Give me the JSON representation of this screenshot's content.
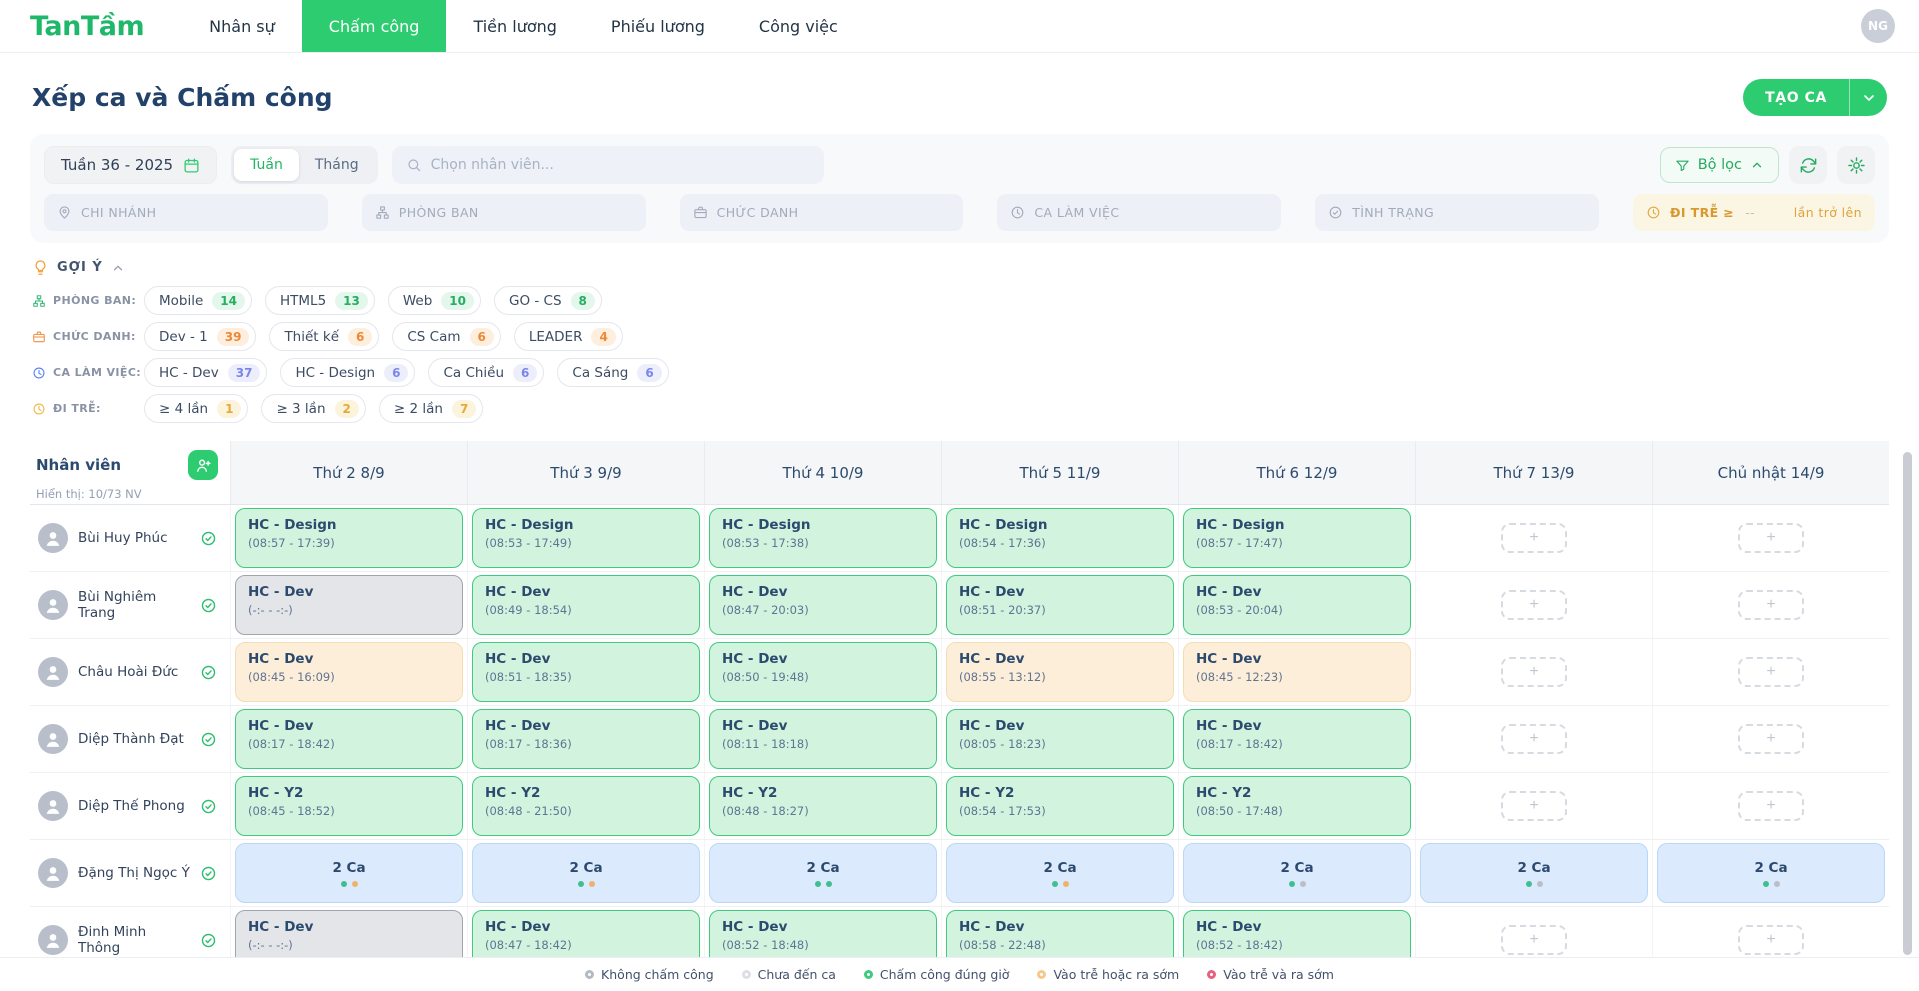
{
  "nav": {
    "logo": "TanTầm",
    "items": [
      {
        "label": "Nhân sự",
        "active": false
      },
      {
        "label": "Chấm công",
        "active": true
      },
      {
        "label": "Tiền lương",
        "active": false
      },
      {
        "label": "Phiếu lương",
        "active": false
      },
      {
        "label": "Công việc",
        "active": false
      }
    ],
    "avatar": "NG"
  },
  "header": {
    "title": "Xếp ca và Chấm công",
    "create_button": "TẠO CA"
  },
  "toolbar": {
    "week": "Tuần 36 - 2025",
    "view_week": "Tuần",
    "view_month": "Tháng",
    "search_placeholder": "Chọn nhân viên...",
    "filter_button": "Bộ lọc"
  },
  "filters": [
    {
      "label": "CHI NHÁNH",
      "icon": "location-pin-icon"
    },
    {
      "label": "PHÒNG BAN",
      "icon": "sitemap-icon"
    },
    {
      "label": "CHỨC DANH",
      "icon": "briefcase-icon"
    },
    {
      "label": "CA LÀM VIỆC",
      "icon": "clock-icon"
    },
    {
      "label": "TÌNH TRẠNG",
      "icon": "check-circle-icon"
    }
  ],
  "late_filter": {
    "label": "ĐI TRỄ ≥",
    "value": "--",
    "suffix": "lần trở lên",
    "icon": "clock-icon"
  },
  "suggestions": {
    "title": "GỢI Ý",
    "groups": [
      {
        "label": "PHÒNG BAN:",
        "icon": "sitemap-icon",
        "icon_color": "#35b775",
        "count_color": "#27ae60",
        "count_bg": "#e4f7ec",
        "chips": [
          {
            "label": "Mobile",
            "count": "14"
          },
          {
            "label": "HTML5",
            "count": "13"
          },
          {
            "label": "Web",
            "count": "10"
          },
          {
            "label": "GO - CS",
            "count": "8"
          }
        ]
      },
      {
        "label": "CHỨC DANH:",
        "icon": "briefcase-icon",
        "icon_color": "#ee8f3f",
        "count_color": "#ed8936",
        "count_bg": "#fdeede",
        "chips": [
          {
            "label": "Dev - 1",
            "count": "39"
          },
          {
            "label": "Thiết kế",
            "count": "6"
          },
          {
            "label": "CS Cam",
            "count": "6"
          },
          {
            "label": "LEADER",
            "count": "4"
          }
        ]
      },
      {
        "label": "CA LÀM VIỆC:",
        "icon": "clock-icon",
        "icon_color": "#4f7df2",
        "count_color": "#7b87e8",
        "count_bg": "#edeefc",
        "chips": [
          {
            "label": "HC - Dev",
            "count": "37"
          },
          {
            "label": "HC - Design",
            "count": "6"
          },
          {
            "label": "Ca Chiều",
            "count": "6"
          },
          {
            "label": "Ca Sáng",
            "count": "6"
          }
        ]
      },
      {
        "label": "ĐI TRỄ:",
        "icon": "clock-icon",
        "icon_color": "#eeb63f",
        "count_color": "#e6a93c",
        "count_bg": "#fcf3dc",
        "chips": [
          {
            "label": "≥ 4 lần",
            "count": "1"
          },
          {
            "label": "≥ 3 lần",
            "count": "2"
          },
          {
            "label": "≥ 2 lần",
            "count": "7"
          }
        ]
      }
    ]
  },
  "table": {
    "employee_header": "Nhân viên",
    "showing": "Hiển thị: 10/73 NV",
    "add_symbol": "+",
    "days": [
      "Thứ 2 8/9",
      "Thứ 3 9/9",
      "Thứ 4 10/9",
      "Thứ 5 11/9",
      "Thứ 6 12/9",
      "Thứ 7 13/9",
      "Chủ nhật 14/9"
    ],
    "rows": [
      {
        "name": "Bùi Huy Phúc",
        "cells": [
          {
            "t": "shift",
            "s": "ontime",
            "title": "HC - Design",
            "time": "(08:57 - 17:39)"
          },
          {
            "t": "shift",
            "s": "ontime",
            "title": "HC - Design",
            "time": "(08:53 - 17:49)"
          },
          {
            "t": "shift",
            "s": "ontime",
            "title": "HC - Design",
            "time": "(08:53 - 17:38)"
          },
          {
            "t": "shift",
            "s": "ontime",
            "title": "HC - Design",
            "time": "(08:54 - 17:36)"
          },
          {
            "t": "shift",
            "s": "ontime",
            "title": "HC - Design",
            "time": "(08:57 - 17:47)"
          },
          {
            "t": "add"
          },
          {
            "t": "add"
          }
        ]
      },
      {
        "name": "Bùi Nghiêm Trang",
        "cells": [
          {
            "t": "shift",
            "s": "none",
            "title": "HC - Dev",
            "time": "(-:- - -:-)"
          },
          {
            "t": "shift",
            "s": "ontime",
            "title": "HC - Dev",
            "time": "(08:49 - 18:54)"
          },
          {
            "t": "shift",
            "s": "ontime",
            "title": "HC - Dev",
            "time": "(08:47 - 20:03)"
          },
          {
            "t": "shift",
            "s": "ontime",
            "title": "HC - Dev",
            "time": "(08:51 - 20:37)"
          },
          {
            "t": "shift",
            "s": "ontime",
            "title": "HC - Dev",
            "time": "(08:53 - 20:04)"
          },
          {
            "t": "add"
          },
          {
            "t": "add"
          }
        ]
      },
      {
        "name": "Châu Hoài Đức",
        "cells": [
          {
            "t": "shift",
            "s": "late",
            "title": "HC - Dev",
            "time": "(08:45 - 16:09)"
          },
          {
            "t": "shift",
            "s": "ontime",
            "title": "HC - Dev",
            "time": "(08:51 - 18:35)"
          },
          {
            "t": "shift",
            "s": "ontime",
            "title": "HC - Dev",
            "time": "(08:50 - 19:48)"
          },
          {
            "t": "shift",
            "s": "late",
            "title": "HC - Dev",
            "time": "(08:55 - 13:12)"
          },
          {
            "t": "shift",
            "s": "late",
            "title": "HC - Dev",
            "time": "(08:45 - 12:23)"
          },
          {
            "t": "add"
          },
          {
            "t": "add"
          }
        ]
      },
      {
        "name": "Diệp Thành Đạt",
        "cells": [
          {
            "t": "shift",
            "s": "ontime",
            "title": "HC - Dev",
            "time": "(08:17 - 18:42)"
          },
          {
            "t": "shift",
            "s": "ontime",
            "title": "HC - Dev",
            "time": "(08:17 - 18:36)"
          },
          {
            "t": "shift",
            "s": "ontime",
            "title": "HC - Dev",
            "time": "(08:11 - 18:18)"
          },
          {
            "t": "shift",
            "s": "ontime",
            "title": "HC - Dev",
            "time": "(08:05 - 18:23)"
          },
          {
            "t": "shift",
            "s": "ontime",
            "title": "HC - Dev",
            "time": "(08:17 - 18:42)"
          },
          {
            "t": "add"
          },
          {
            "t": "add"
          }
        ]
      },
      {
        "name": "Diệp Thế Phong",
        "cells": [
          {
            "t": "shift",
            "s": "ontime",
            "title": "HC - Y2",
            "time": "(08:45 - 18:52)"
          },
          {
            "t": "shift",
            "s": "ontime",
            "title": "HC - Y2",
            "time": "(08:48 - 21:50)"
          },
          {
            "t": "shift",
            "s": "ontime",
            "title": "HC - Y2",
            "time": "(08:48 - 18:27)"
          },
          {
            "t": "shift",
            "s": "ontime",
            "title": "HC - Y2",
            "time": "(08:54 - 17:53)"
          },
          {
            "t": "shift",
            "s": "ontime",
            "title": "HC - Y2",
            "time": "(08:50 - 17:48)"
          },
          {
            "t": "add"
          },
          {
            "t": "add"
          }
        ]
      },
      {
        "name": "Đặng Thị Ngọc Ý",
        "cells": [
          {
            "t": "multi",
            "label": "2 Ca",
            "dots": [
              "teal",
              "orange"
            ]
          },
          {
            "t": "multi",
            "label": "2 Ca",
            "dots": [
              "teal",
              "orange"
            ]
          },
          {
            "t": "multi",
            "label": "2 Ca",
            "dots": [
              "teal",
              "teal"
            ]
          },
          {
            "t": "multi",
            "label": "2 Ca",
            "dots": [
              "teal",
              "orange"
            ]
          },
          {
            "t": "multi",
            "label": "2 Ca",
            "dots": [
              "teal",
              "gray"
            ]
          },
          {
            "t": "multi",
            "label": "2 Ca",
            "dots": [
              "teal",
              "gray"
            ]
          },
          {
            "t": "multi",
            "label": "2 Ca",
            "dots": [
              "teal",
              "gray"
            ]
          }
        ]
      },
      {
        "name": "Đinh Minh Thông",
        "cells": [
          {
            "t": "shift",
            "s": "none",
            "title": "HC - Dev",
            "time": "(-:- - -:-)"
          },
          {
            "t": "shift",
            "s": "ontime",
            "title": "HC - Dev",
            "time": "(08:47 - 18:42)"
          },
          {
            "t": "shift",
            "s": "ontime",
            "title": "HC - Dev",
            "time": "(08:52 - 18:48)"
          },
          {
            "t": "shift",
            "s": "ontime",
            "title": "HC - Dev",
            "time": "(08:58 - 22:48)"
          },
          {
            "t": "shift",
            "s": "ontime",
            "title": "HC - Dev",
            "time": "(08:52 - 18:42)"
          },
          {
            "t": "add"
          },
          {
            "t": "add"
          }
        ]
      }
    ]
  },
  "legend": [
    {
      "label": "Không chấm công",
      "color": "#b4bac4"
    },
    {
      "label": "Chưa đến ca",
      "color": "#dcdfe5"
    },
    {
      "label": "Chấm công đúng giờ",
      "color": "#3ecb7e"
    },
    {
      "label": "Vào trễ hoặc ra sớm",
      "color": "#f5c98b"
    },
    {
      "label": "Vào trễ và ra sớm",
      "color": "#e8607f"
    }
  ],
  "colors": {
    "accent_green": "#2ecc71",
    "cell_ontime_bg": "#d2f4df",
    "cell_ontime_border": "#41c97e",
    "cell_late_bg": "#fdeeda",
    "cell_none_bg": "#e4e5e8",
    "cell_multi_bg": "#dbeafc",
    "dot_teal": "#3fbf8f",
    "dot_orange": "#efb26d",
    "dot_gray": "#b9bfca"
  }
}
